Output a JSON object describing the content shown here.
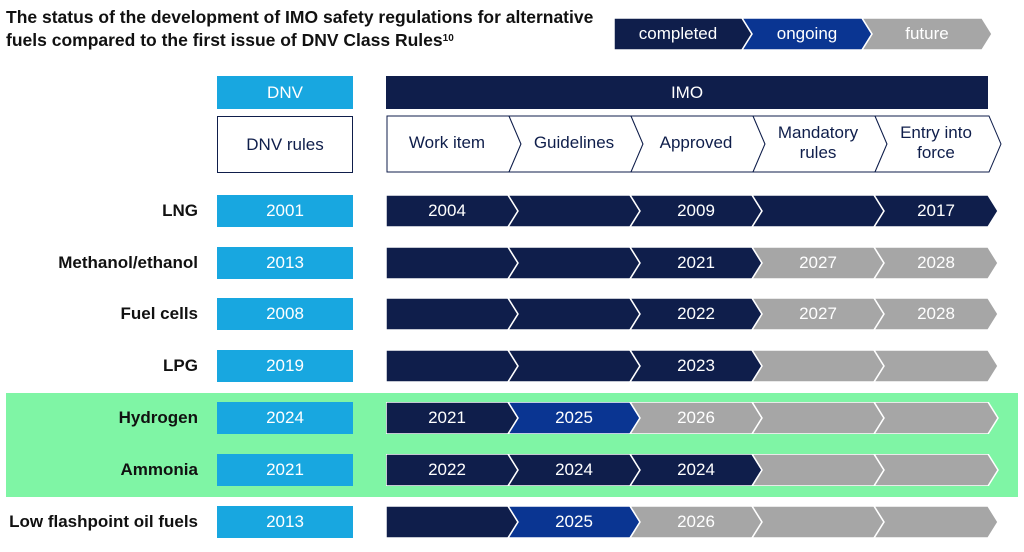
{
  "title": "The status of the development of IMO safety regulations for alternative fuels compared to the first issue of DNV Class Rules",
  "title_sup": "10",
  "legend": [
    {
      "label": "completed",
      "status": "completed"
    },
    {
      "label": "ongoing",
      "status": "ongoing"
    },
    {
      "label": "future",
      "status": "future"
    }
  ],
  "colors": {
    "completed": "#0f1e4b",
    "ongoing": "#0a3592",
    "future": "#a6a6a6",
    "dnv": "#18a7e0",
    "highlight": "#7ff5a5"
  },
  "headers": {
    "dnv": "DNV",
    "imo": "IMO",
    "dnv_rules": "DNV rules"
  },
  "stages": [
    "Work item",
    "Guidelines",
    "Approved",
    "Mandatory rules",
    "Entry into force"
  ],
  "rows": [
    {
      "fuel": "LNG",
      "dnv_year": "2001",
      "highlight": false,
      "segments": [
        {
          "status": "completed",
          "year": "2004"
        },
        {
          "status": "completed",
          "year": ""
        },
        {
          "status": "completed",
          "year": "2009"
        },
        {
          "status": "completed",
          "year": ""
        },
        {
          "status": "completed",
          "year": "2017"
        }
      ]
    },
    {
      "fuel": "Methanol/ethanol",
      "dnv_year": "2013",
      "highlight": false,
      "segments": [
        {
          "status": "completed",
          "year": ""
        },
        {
          "status": "completed",
          "year": ""
        },
        {
          "status": "completed",
          "year": "2021"
        },
        {
          "status": "future",
          "year": "2027"
        },
        {
          "status": "future",
          "year": "2028"
        }
      ]
    },
    {
      "fuel": "Fuel cells",
      "dnv_year": "2008",
      "highlight": false,
      "segments": [
        {
          "status": "completed",
          "year": ""
        },
        {
          "status": "completed",
          "year": ""
        },
        {
          "status": "completed",
          "year": "2022"
        },
        {
          "status": "future",
          "year": "2027"
        },
        {
          "status": "future",
          "year": "2028"
        }
      ]
    },
    {
      "fuel": "LPG",
      "dnv_year": "2019",
      "highlight": false,
      "segments": [
        {
          "status": "completed",
          "year": ""
        },
        {
          "status": "completed",
          "year": ""
        },
        {
          "status": "completed",
          "year": "2023"
        },
        {
          "status": "future",
          "year": ""
        },
        {
          "status": "future",
          "year": ""
        }
      ]
    },
    {
      "fuel": "Hydrogen",
      "dnv_year": "2024",
      "highlight": true,
      "segments": [
        {
          "status": "completed",
          "year": "2021"
        },
        {
          "status": "ongoing",
          "year": "2025"
        },
        {
          "status": "future",
          "year": "2026"
        },
        {
          "status": "future",
          "year": ""
        },
        {
          "status": "future",
          "year": ""
        }
      ]
    },
    {
      "fuel": "Ammonia",
      "dnv_year": "2021",
      "highlight": true,
      "segments": [
        {
          "status": "completed",
          "year": "2022"
        },
        {
          "status": "completed",
          "year": "2024"
        },
        {
          "status": "completed",
          "year": "2024"
        },
        {
          "status": "future",
          "year": ""
        },
        {
          "status": "future",
          "year": ""
        }
      ]
    },
    {
      "fuel": "Low flashpoint oil fuels",
      "dnv_year": "2013",
      "highlight": false,
      "segments": [
        {
          "status": "completed",
          "year": ""
        },
        {
          "status": "ongoing",
          "year": "2025"
        },
        {
          "status": "future",
          "year": "2026"
        },
        {
          "status": "future",
          "year": ""
        },
        {
          "status": "future",
          "year": ""
        }
      ]
    }
  ]
}
